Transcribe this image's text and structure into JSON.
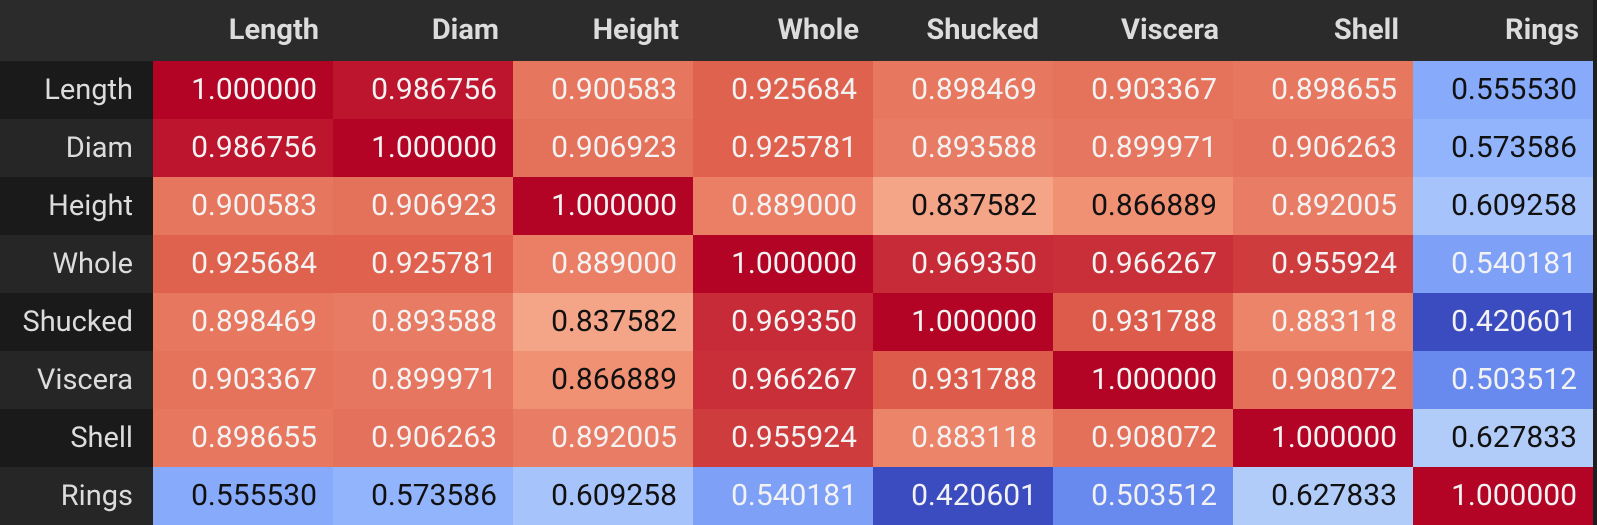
{
  "chart_data": {
    "type": "heatmap",
    "title": "",
    "columns": [
      "Length",
      "Diam",
      "Height",
      "Whole",
      "Shucked",
      "Viscera",
      "Shell",
      "Rings"
    ],
    "rows": [
      "Length",
      "Diam",
      "Height",
      "Whole",
      "Shucked",
      "Viscera",
      "Shell",
      "Rings"
    ],
    "values": [
      [
        "1.000000",
        "0.986756",
        "0.900583",
        "0.925684",
        "0.898469",
        "0.903367",
        "0.898655",
        "0.555530"
      ],
      [
        "0.986756",
        "1.000000",
        "0.906923",
        "0.925781",
        "0.893588",
        "0.899971",
        "0.906263",
        "0.573586"
      ],
      [
        "0.900583",
        "0.906923",
        "1.000000",
        "0.889000",
        "0.837582",
        "0.866889",
        "0.892005",
        "0.609258"
      ],
      [
        "0.925684",
        "0.925781",
        "0.889000",
        "1.000000",
        "0.969350",
        "0.966267",
        "0.955924",
        "0.540181"
      ],
      [
        "0.898469",
        "0.893588",
        "0.837582",
        "0.969350",
        "1.000000",
        "0.931788",
        "0.883118",
        "0.420601"
      ],
      [
        "0.903367",
        "0.899971",
        "0.866889",
        "0.966267",
        "0.931788",
        "1.000000",
        "0.908072",
        "0.503512"
      ],
      [
        "0.898655",
        "0.906263",
        "0.892005",
        "0.955924",
        "0.883118",
        "0.908072",
        "1.000000",
        "0.627833"
      ],
      [
        "0.555530",
        "0.573586",
        "0.609258",
        "0.540181",
        "0.420601",
        "0.503512",
        "0.627833",
        "1.000000"
      ]
    ],
    "colormap": "coolwarm",
    "colors": {
      "background": "#1f1f1f",
      "header": "#2b2b2b",
      "row_header_dark": "#1a1a1a",
      "row_header_light": "#262626",
      "header_text": "#dcdcdc"
    }
  }
}
